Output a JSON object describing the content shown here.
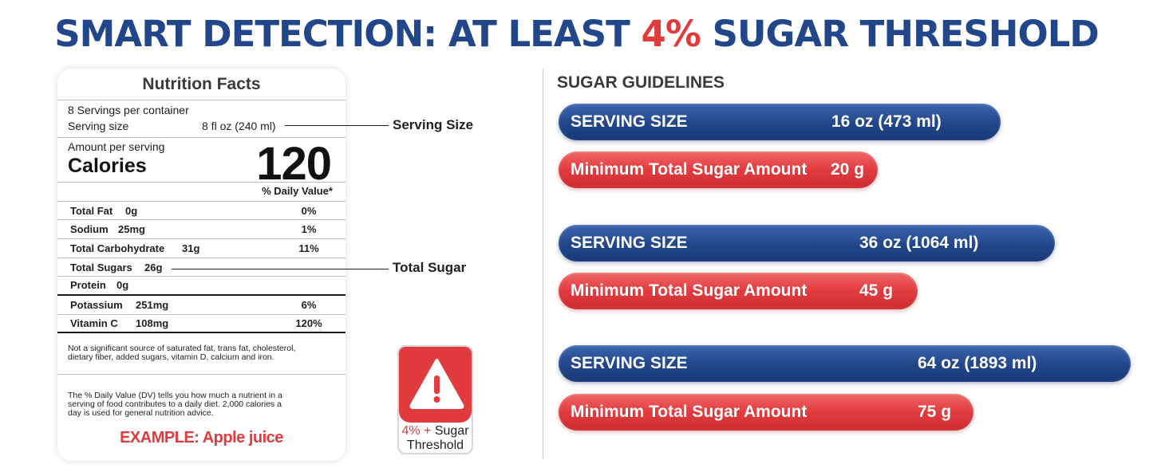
{
  "headline": {
    "before": "SMART DETECTION: AT LEAST ",
    "accent": "4%",
    "after": " SUGAR THRESHOLD"
  },
  "colors": {
    "brand_blue": "#21468a",
    "alert_red": "#e23b3e"
  },
  "label": {
    "title": "Nutrition Facts",
    "servings_per_container": "8 Servings per container",
    "serving_size_label": "Serving size",
    "serving_size_value": "8 fl oz (240 ml)",
    "amount_per_serving": "Amount per serving",
    "calories_label": "Calories",
    "calories_value": "120",
    "daily_value_header": "% Daily Value*",
    "nutrients": [
      {
        "name": "Total Fat",
        "amount": "0g",
        "dv": "0%"
      },
      {
        "name": "Sodium",
        "amount": "25mg",
        "dv": "1%"
      },
      {
        "name": "Total Carbohydrate",
        "amount": "31g",
        "dv": "11%"
      },
      {
        "name": "Total Sugars",
        "amount": "26g",
        "dv": ""
      },
      {
        "name": "Protein",
        "amount": "0g",
        "dv": ""
      },
      {
        "name": "Potassium",
        "amount": "251mg",
        "dv": "6%"
      },
      {
        "name": "Vitamin C",
        "amount": "108mg",
        "dv": "120%"
      }
    ],
    "footnote_1_line_1": "Not a significant source of saturated fat, trans fat, cholesterol,",
    "footnote_1_line_2": "dietary fiber, added sugars, vitamin D, calcium and iron.",
    "footnote_2_line_1": "The % Daily Value (DV) tells you how much a nutrient in a",
    "footnote_2_line_2": "serving of food contributes to a daily diet. 2,000 calories a",
    "footnote_2_line_3": "day is used for general nutrition advice.",
    "example": "EXAMPLE: Apple juice"
  },
  "callouts": {
    "serving_size": "Serving Size",
    "total_sugar": "Total Sugar"
  },
  "badge": {
    "icon": "warning-triangle-icon",
    "pct": "4% +",
    "word": "Sugar",
    "line2": "Threshold"
  },
  "guidelines": {
    "title": "SUGAR GUIDELINES",
    "serving_label": "SERVING SIZE",
    "sugar_label": "Minimum Total Sugar Amount",
    "rows": [
      {
        "serving": "16 oz (473 ml)",
        "sugar": "20 g"
      },
      {
        "serving": "36 oz (1064 ml)",
        "sugar": "45 g"
      },
      {
        "serving": "64 oz (1893 ml)",
        "sugar": "75 g"
      }
    ]
  }
}
